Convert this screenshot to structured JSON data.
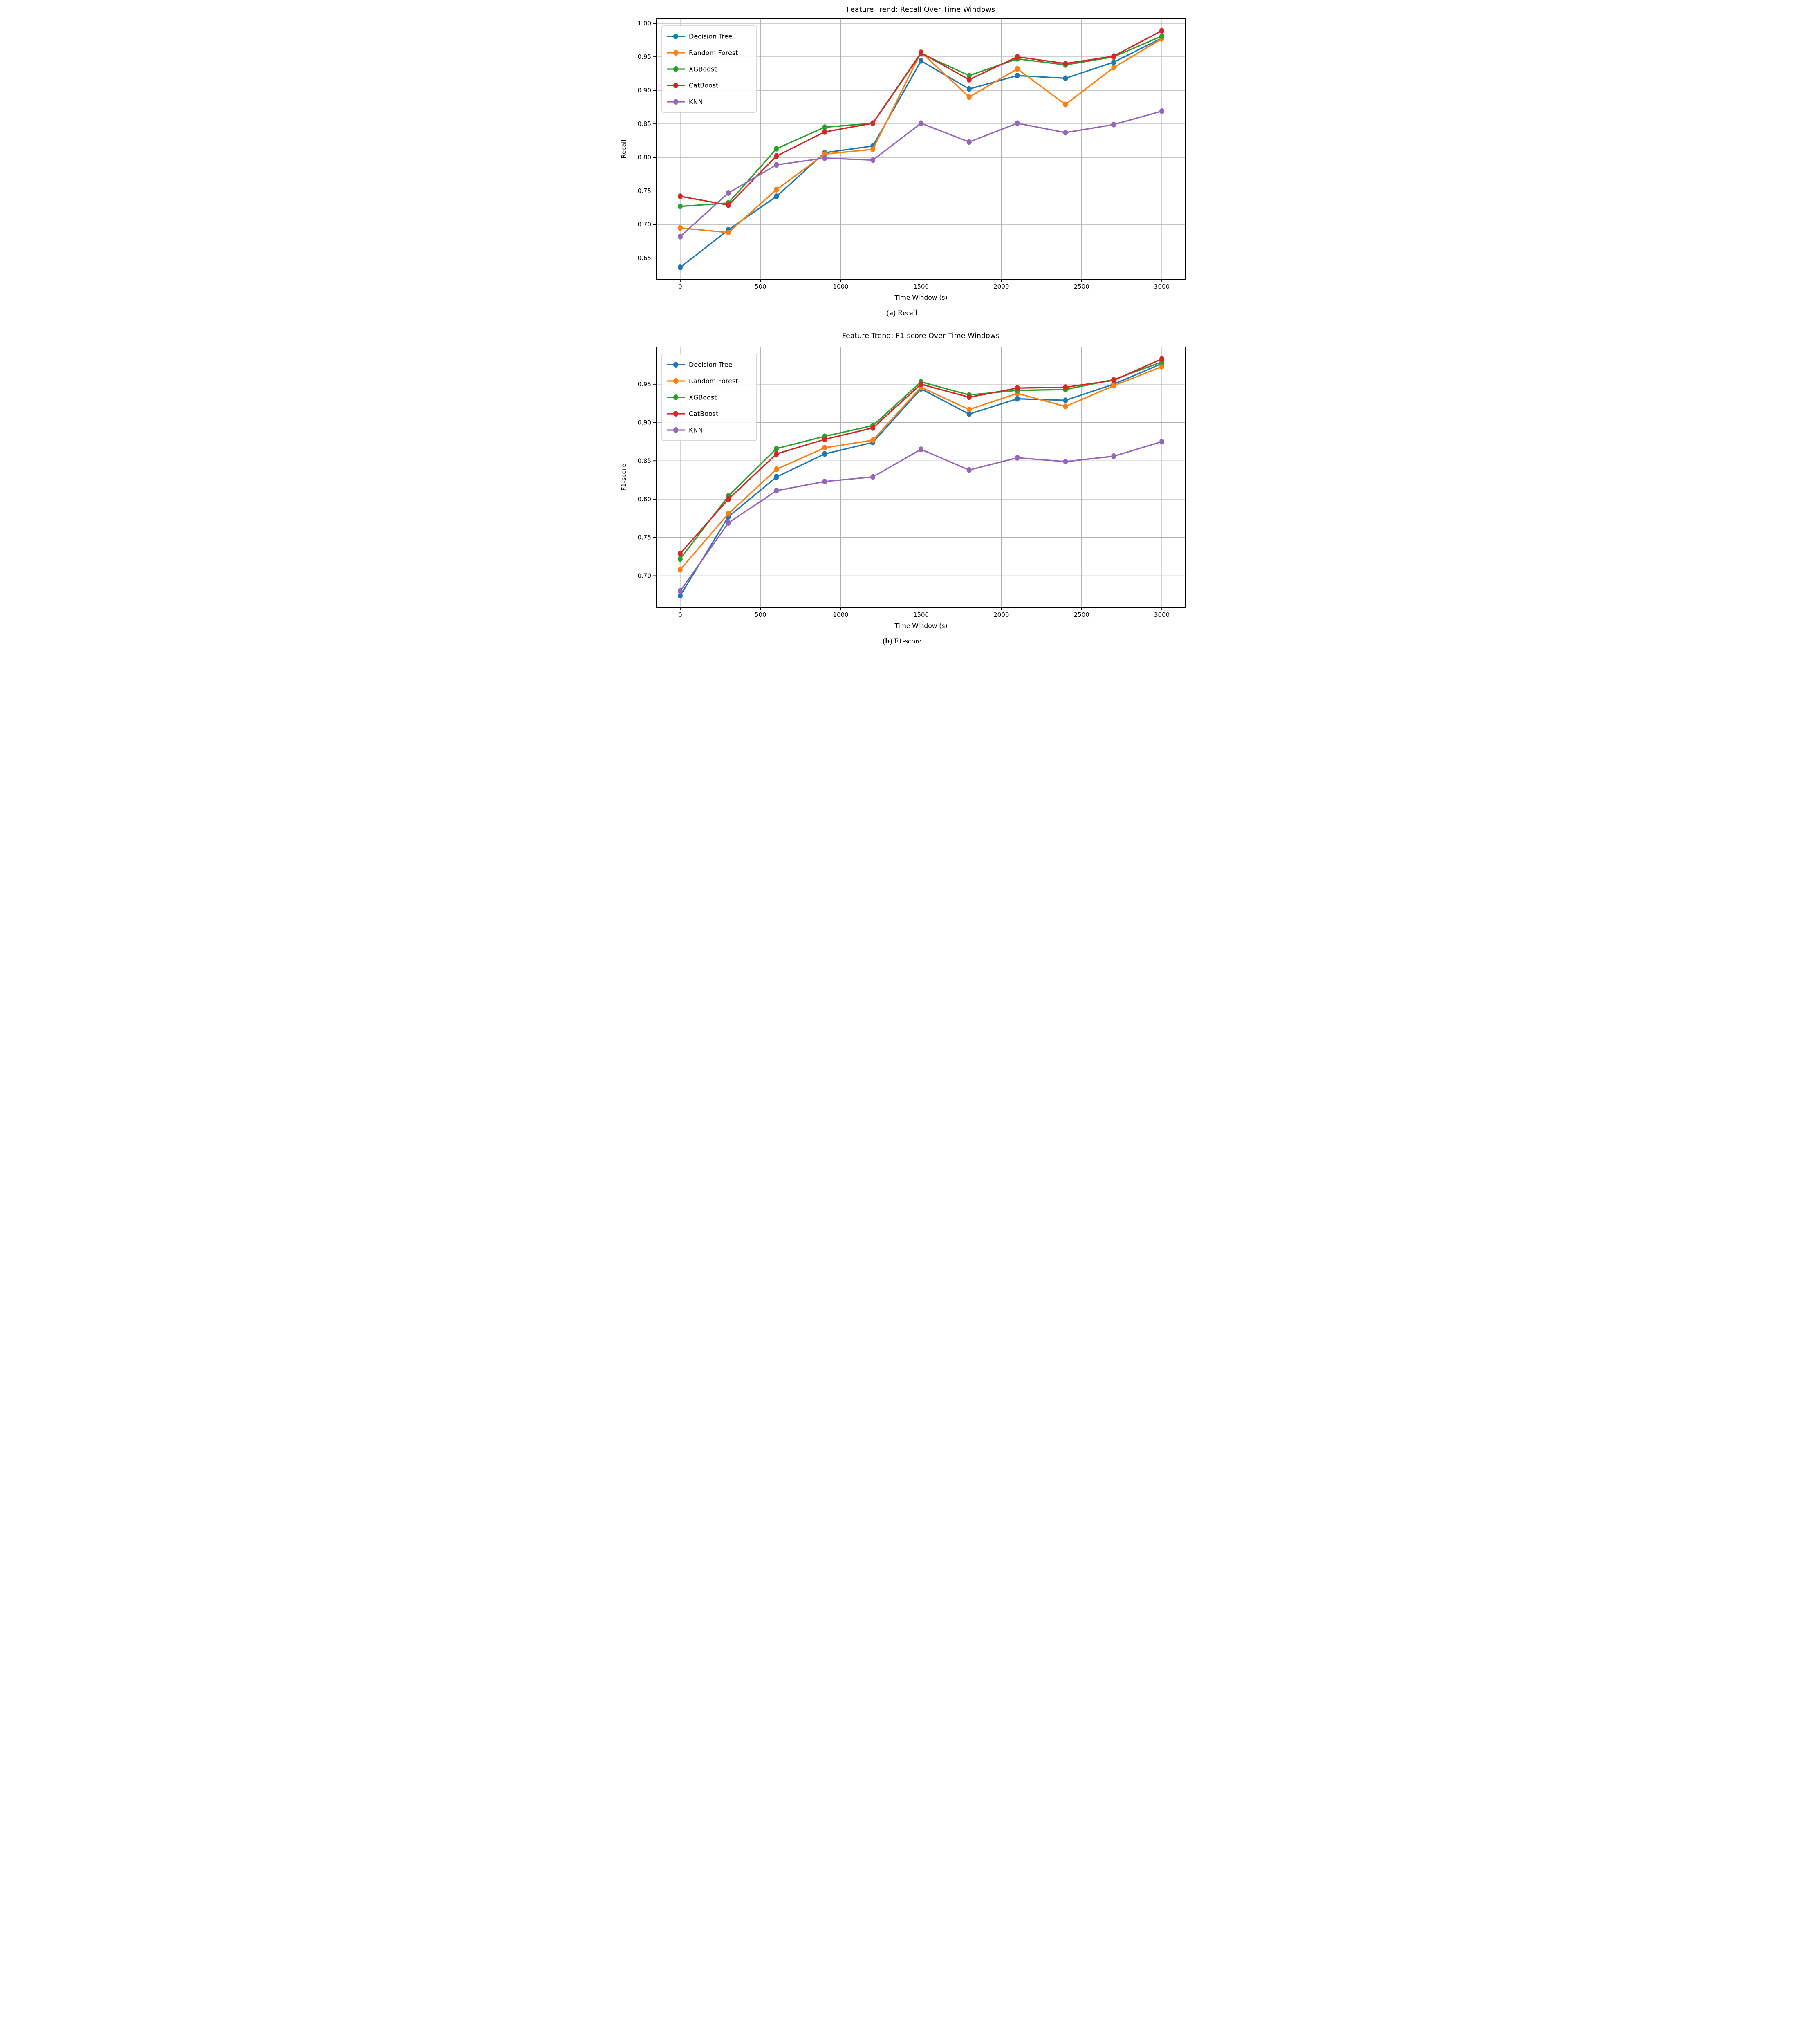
{
  "figure_bg": "#ffffff",
  "grid_color": "#b0b0b0",
  "spine_color": "#000000",
  "text_color": "#000000",
  "legend": {
    "border_color": "#cccccc",
    "background": "#ffffff",
    "entries": [
      "Decision Tree",
      "Random Forest",
      "XGBoost",
      "CatBoost",
      "KNN"
    ]
  },
  "chart_data": [
    {
      "type": "line",
      "title": "Feature Trend: Recall Over Time Windows",
      "xlabel": "Time Window (s)",
      "ylabel": "Recall",
      "caption_letter": "a",
      "caption_label": "Recall",
      "grid": true,
      "legend_position": "upper-left",
      "x": [
        0,
        300,
        600,
        900,
        1200,
        1500,
        1800,
        2100,
        2400,
        2700,
        3000
      ],
      "xticks": [
        0,
        500,
        1000,
        1500,
        2000,
        2500,
        3000
      ],
      "yticks": [
        0.65,
        0.7,
        0.75,
        0.8,
        0.85,
        0.9,
        0.95,
        1.0
      ],
      "xlim": [
        -150,
        3150
      ],
      "ylim": [
        0.6184,
        1.0067
      ],
      "series": [
        {
          "name": "Decision Tree",
          "color": "#1f77b4",
          "values": [
            0.636,
            0.692,
            0.742,
            0.807,
            0.817,
            0.944,
            0.902,
            0.922,
            0.918,
            0.942,
            0.978
          ]
        },
        {
          "name": "Random Forest",
          "color": "#ff7f0e",
          "values": [
            0.695,
            0.688,
            0.752,
            0.805,
            0.812,
            0.957,
            0.89,
            0.932,
            0.879,
            0.934,
            0.977
          ]
        },
        {
          "name": "XGBoost",
          "color": "#2ca02c",
          "values": [
            0.727,
            0.732,
            0.813,
            0.845,
            0.851,
            0.955,
            0.922,
            0.947,
            0.938,
            0.95,
            0.981
          ]
        },
        {
          "name": "CatBoost",
          "color": "#d62728",
          "values": [
            0.742,
            0.729,
            0.802,
            0.838,
            0.851,
            0.956,
            0.916,
            0.95,
            0.94,
            0.951,
            0.989
          ]
        },
        {
          "name": "KNN",
          "color": "#9467bd",
          "values": [
            0.682,
            0.747,
            0.789,
            0.799,
            0.796,
            0.851,
            0.823,
            0.851,
            0.837,
            0.849,
            0.869
          ]
        }
      ]
    },
    {
      "type": "line",
      "title": "Feature Trend: F1-score Over Time Windows",
      "xlabel": "Time Window (s)",
      "ylabel": "F1-score",
      "caption_letter": "b",
      "caption_label": "F1-score",
      "grid": true,
      "legend_position": "upper-left",
      "x": [
        0,
        300,
        600,
        900,
        1200,
        1500,
        1800,
        2100,
        2400,
        2700,
        3000
      ],
      "xticks": [
        0,
        500,
        1000,
        1500,
        2000,
        2500,
        3000
      ],
      "yticks": [
        0.7,
        0.75,
        0.8,
        0.85,
        0.9,
        0.95
      ],
      "xlim": [
        -150,
        3150
      ],
      "ylim": [
        0.6586,
        0.9985
      ],
      "series": [
        {
          "name": "Decision Tree",
          "color": "#1f77b4",
          "values": [
            0.674,
            0.777,
            0.829,
            0.859,
            0.874,
            0.944,
            0.911,
            0.931,
            0.929,
            0.95,
            0.977
          ]
        },
        {
          "name": "Random Forest",
          "color": "#ff7f0e",
          "values": [
            0.708,
            0.781,
            0.839,
            0.867,
            0.877,
            0.946,
            0.917,
            0.938,
            0.921,
            0.948,
            0.973
          ]
        },
        {
          "name": "XGBoost",
          "color": "#2ca02c",
          "values": [
            0.722,
            0.804,
            0.866,
            0.882,
            0.896,
            0.953,
            0.936,
            0.942,
            0.943,
            0.956,
            0.979
          ]
        },
        {
          "name": "CatBoost",
          "color": "#d62728",
          "values": [
            0.729,
            0.8,
            0.859,
            0.878,
            0.893,
            0.95,
            0.933,
            0.945,
            0.946,
            0.955,
            0.983
          ]
        },
        {
          "name": "KNN",
          "color": "#9467bd",
          "values": [
            0.68,
            0.769,
            0.811,
            0.823,
            0.829,
            0.865,
            0.838,
            0.854,
            0.849,
            0.856,
            0.875
          ]
        }
      ]
    }
  ]
}
